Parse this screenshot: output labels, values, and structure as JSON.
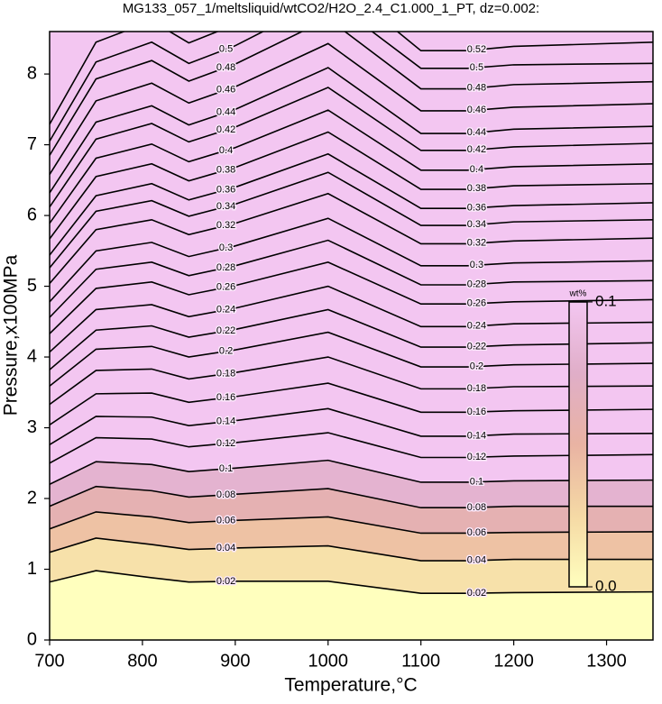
{
  "chart_data": {
    "type": "contour",
    "title": "MG133_057_1/meltsliquid/wtCO2/H2O_2.4_C1.000_1_PT, dz=0.002:",
    "x_label": "Temperature,°C",
    "y_label": "Pressure,x100MPa",
    "xlim": [
      700,
      1350
    ],
    "xticks": [
      700,
      800,
      900,
      1000,
      1100,
      1200,
      1300
    ],
    "ylim": [
      0,
      8.6
    ],
    "yticks": [
      0,
      1,
      2,
      3,
      4,
      5,
      6,
      7,
      8
    ],
    "x": [
      700,
      750,
      810,
      850,
      900,
      1000,
      1100,
      1150,
      1200,
      1350
    ],
    "levels": [
      0.02,
      0.04,
      0.06,
      0.08,
      0.1,
      0.12,
      0.14,
      0.16,
      0.18,
      0.2,
      0.22,
      0.24,
      0.26,
      0.28,
      0.3,
      0.32,
      0.34,
      0.36,
      0.38,
      0.4,
      0.42,
      0.44,
      0.46,
      0.48,
      0.5,
      0.52
    ],
    "contours": [
      [
        0.82,
        0.98,
        0.88,
        0.82,
        0.83,
        0.83,
        0.66,
        0.66,
        0.67,
        0.68
      ],
      [
        1.24,
        1.44,
        1.35,
        1.28,
        1.3,
        1.33,
        1.12,
        1.12,
        1.14,
        1.14
      ],
      [
        1.57,
        1.81,
        1.74,
        1.66,
        1.69,
        1.74,
        1.51,
        1.51,
        1.52,
        1.53
      ],
      [
        1.89,
        2.17,
        2.11,
        2.02,
        2.06,
        2.14,
        1.87,
        1.87,
        1.89,
        1.89
      ],
      [
        2.2,
        2.52,
        2.48,
        2.38,
        2.43,
        2.54,
        2.23,
        2.23,
        2.25,
        2.26
      ],
      [
        2.5,
        2.86,
        2.84,
        2.73,
        2.79,
        2.93,
        2.58,
        2.58,
        2.6,
        2.62
      ],
      [
        2.76,
        3.16,
        3.15,
        3.03,
        3.1,
        3.27,
        2.88,
        2.88,
        2.91,
        2.92
      ],
      [
        3.04,
        3.48,
        3.49,
        3.36,
        3.44,
        3.63,
        3.22,
        3.22,
        3.24,
        3.26
      ],
      [
        3.33,
        3.81,
        3.83,
        3.69,
        3.78,
        4.0,
        3.55,
        3.55,
        3.58,
        3.59
      ],
      [
        3.59,
        4.11,
        4.15,
        4.0,
        4.1,
        4.35,
        3.86,
        3.86,
        3.89,
        3.91
      ],
      [
        3.82,
        4.38,
        4.44,
        4.28,
        4.39,
        4.67,
        4.14,
        4.14,
        4.17,
        4.2
      ],
      [
        4.07,
        4.67,
        4.74,
        4.57,
        4.69,
        5.0,
        4.43,
        4.43,
        4.47,
        4.49
      ],
      [
        4.33,
        4.97,
        5.06,
        4.88,
        5.01,
        5.34,
        4.75,
        4.75,
        4.78,
        4.81
      ],
      [
        4.56,
        5.24,
        5.34,
        5.15,
        5.29,
        5.65,
        5.02,
        5.02,
        5.06,
        5.08
      ],
      [
        4.78,
        5.5,
        5.62,
        5.42,
        5.57,
        5.96,
        5.29,
        5.29,
        5.33,
        5.36
      ],
      [
        5.04,
        5.8,
        5.94,
        5.73,
        5.89,
        6.31,
        5.6,
        5.6,
        5.64,
        5.68
      ],
      [
        5.26,
        6.06,
        6.21,
        5.99,
        6.16,
        6.61,
        5.86,
        5.86,
        5.91,
        5.94
      ],
      [
        5.44,
        6.28,
        6.45,
        6.22,
        6.4,
        6.87,
        6.1,
        6.1,
        6.14,
        6.18
      ],
      [
        5.67,
        6.55,
        6.73,
        6.49,
        6.68,
        7.18,
        6.37,
        6.37,
        6.42,
        6.45
      ],
      [
        5.89,
        6.81,
        7.01,
        6.76,
        6.96,
        7.49,
        6.64,
        6.64,
        6.69,
        6.73
      ],
      [
        6.12,
        7.08,
        7.3,
        7.04,
        7.25,
        7.81,
        6.92,
        6.92,
        6.97,
        7.02
      ],
      [
        6.32,
        7.32,
        7.55,
        7.28,
        7.5,
        8.09,
        7.16,
        7.16,
        7.22,
        7.26
      ],
      [
        6.58,
        7.62,
        7.87,
        7.59,
        7.82,
        8.43,
        7.48,
        7.48,
        7.53,
        7.58
      ],
      [
        6.85,
        7.93,
        8.19,
        7.9,
        8.14,
        8.78,
        7.79,
        7.79,
        7.85,
        7.89
      ],
      [
        7.05,
        8.17,
        8.45,
        8.15,
        8.4,
        9.07,
        8.08,
        8.08,
        8.13,
        8.15
      ],
      [
        7.29,
        8.45,
        8.75,
        8.44,
        8.7,
        9.4,
        8.33,
        8.33,
        8.39,
        8.45
      ]
    ],
    "colormap": [
      "#ffffbe",
      "#f5d9a5",
      "#e9b3a3",
      "#e0aec8",
      "#f3c6f1"
    ],
    "colorbar": {
      "label": "wt%",
      "lim": [
        0,
        0.1
      ],
      "ticks": [
        {
          "value": 0,
          "label": "0.0"
        },
        0.1
      ]
    }
  }
}
